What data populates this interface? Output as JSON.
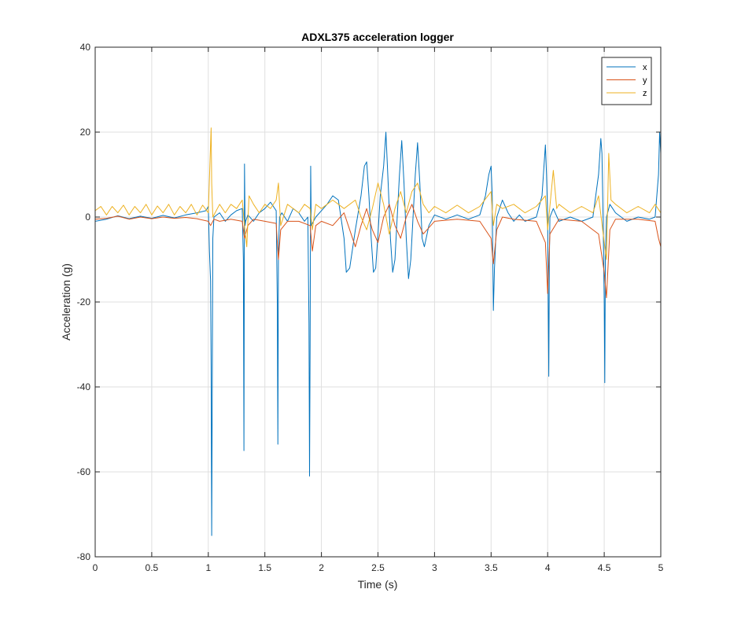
{
  "chart_data": {
    "type": "line",
    "title": "ADXL375 acceleration logger",
    "xlabel": "Time (s)",
    "ylabel": "Acceleration (g)",
    "xlim": [
      0,
      5
    ],
    "ylim": [
      -80,
      40
    ],
    "xticks": [
      "0",
      "0.5",
      "1",
      "1.5",
      "2",
      "2.5",
      "3",
      "3.5",
      "4",
      "4.5",
      "5"
    ],
    "yticks": [
      "40",
      "20",
      "0",
      "-20",
      "-40",
      "-60",
      "-80"
    ],
    "grid": true,
    "legend_position": "top-right",
    "series": [
      {
        "name": "x",
        "color": "#0072BD",
        "points": [
          [
            0,
            -1
          ],
          [
            0.1,
            -0.5
          ],
          [
            0.2,
            0.3
          ],
          [
            0.3,
            -0.4
          ],
          [
            0.4,
            0.2
          ],
          [
            0.5,
            -0.3
          ],
          [
            0.6,
            0.4
          ],
          [
            0.7,
            -0.2
          ],
          [
            0.8,
            0.5
          ],
          [
            0.9,
            1.0
          ],
          [
            0.98,
            1.5
          ],
          [
            1.0,
            2.5
          ],
          [
            1.01,
            -8
          ],
          [
            1.02,
            -15
          ],
          [
            1.025,
            -35
          ],
          [
            1.03,
            -75
          ],
          [
            1.035,
            -40
          ],
          [
            1.04,
            -5
          ],
          [
            1.05,
            0
          ],
          [
            1.1,
            1
          ],
          [
            1.15,
            -1
          ],
          [
            1.2,
            0.5
          ],
          [
            1.25,
            1.5
          ],
          [
            1.3,
            2
          ],
          [
            1.31,
            -10
          ],
          [
            1.315,
            -55
          ],
          [
            1.32,
            12.5
          ],
          [
            1.325,
            -2
          ],
          [
            1.33,
            -1
          ],
          [
            1.35,
            0.5
          ],
          [
            1.4,
            -1
          ],
          [
            1.45,
            1
          ],
          [
            1.5,
            2
          ],
          [
            1.55,
            3.5
          ],
          [
            1.6,
            1.5
          ],
          [
            1.61,
            -20
          ],
          [
            1.615,
            -53.5
          ],
          [
            1.62,
            -8
          ],
          [
            1.63,
            0
          ],
          [
            1.65,
            1
          ],
          [
            1.7,
            -1
          ],
          [
            1.75,
            2
          ],
          [
            1.8,
            1
          ],
          [
            1.85,
            -1
          ],
          [
            1.88,
            0
          ],
          [
            1.89,
            -25
          ],
          [
            1.895,
            -61
          ],
          [
            1.9,
            -30
          ],
          [
            1.905,
            12
          ],
          [
            1.91,
            -2
          ],
          [
            1.95,
            0
          ],
          [
            2.0,
            1.5
          ],
          [
            2.05,
            3
          ],
          [
            2.1,
            5
          ],
          [
            2.15,
            4
          ],
          [
            2.2,
            -5
          ],
          [
            2.22,
            -13
          ],
          [
            2.25,
            -12
          ],
          [
            2.3,
            -3
          ],
          [
            2.35,
            5
          ],
          [
            2.38,
            12
          ],
          [
            2.4,
            13
          ],
          [
            2.42,
            5
          ],
          [
            2.44,
            -5
          ],
          [
            2.46,
            -13
          ],
          [
            2.48,
            -12
          ],
          [
            2.5,
            -4
          ],
          [
            2.52,
            5
          ],
          [
            2.55,
            12
          ],
          [
            2.57,
            20
          ],
          [
            2.59,
            8
          ],
          [
            2.61,
            -5
          ],
          [
            2.63,
            -13
          ],
          [
            2.65,
            -10
          ],
          [
            2.67,
            0
          ],
          [
            2.69,
            10
          ],
          [
            2.71,
            18
          ],
          [
            2.73,
            8
          ],
          [
            2.75,
            -5
          ],
          [
            2.77,
            -14.5
          ],
          [
            2.79,
            -10
          ],
          [
            2.81,
            0
          ],
          [
            2.83,
            10
          ],
          [
            2.85,
            17.5
          ],
          [
            2.87,
            8
          ],
          [
            2.89,
            -5
          ],
          [
            2.91,
            -7
          ],
          [
            2.95,
            -2
          ],
          [
            3.0,
            0.5
          ],
          [
            3.1,
            -0.5
          ],
          [
            3.2,
            0.5
          ],
          [
            3.3,
            -0.5
          ],
          [
            3.4,
            0.5
          ],
          [
            3.45,
            5
          ],
          [
            3.48,
            10
          ],
          [
            3.5,
            12
          ],
          [
            3.51,
            5
          ],
          [
            3.515,
            -10
          ],
          [
            3.52,
            -22
          ],
          [
            3.53,
            -12
          ],
          [
            3.55,
            0
          ],
          [
            3.6,
            4
          ],
          [
            3.65,
            1
          ],
          [
            3.7,
            -1
          ],
          [
            3.75,
            0.5
          ],
          [
            3.8,
            -1
          ],
          [
            3.9,
            0
          ],
          [
            3.95,
            5
          ],
          [
            3.98,
            17
          ],
          [
            3.99,
            10
          ],
          [
            4.0,
            0
          ],
          [
            4.005,
            -20
          ],
          [
            4.01,
            -37.5
          ],
          [
            4.015,
            -10
          ],
          [
            4.02,
            0
          ],
          [
            4.05,
            2
          ],
          [
            4.1,
            -1
          ],
          [
            4.2,
            0
          ],
          [
            4.3,
            -1
          ],
          [
            4.4,
            0
          ],
          [
            4.45,
            10
          ],
          [
            4.47,
            18.5
          ],
          [
            4.48,
            15
          ],
          [
            4.49,
            0
          ],
          [
            4.5,
            -20
          ],
          [
            4.505,
            -39
          ],
          [
            4.51,
            -10
          ],
          [
            4.52,
            0
          ],
          [
            4.55,
            3
          ],
          [
            4.6,
            1
          ],
          [
            4.7,
            -1
          ],
          [
            4.8,
            0
          ],
          [
            4.9,
            -0.5
          ],
          [
            4.95,
            0
          ],
          [
            4.98,
            10
          ],
          [
            4.99,
            20
          ],
          [
            5.0,
            15
          ]
        ]
      },
      {
        "name": "y",
        "color": "#D95319",
        "points": [
          [
            0,
            -0.5
          ],
          [
            0.1,
            -0.3
          ],
          [
            0.2,
            0.2
          ],
          [
            0.3,
            -0.5
          ],
          [
            0.4,
            0
          ],
          [
            0.5,
            -0.4
          ],
          [
            0.6,
            0
          ],
          [
            0.7,
            -0.3
          ],
          [
            0.8,
            -0.1
          ],
          [
            0.9,
            -0.4
          ],
          [
            1.0,
            -1
          ],
          [
            1.02,
            -2
          ],
          [
            1.05,
            -0.5
          ],
          [
            1.1,
            -1
          ],
          [
            1.2,
            -0.5
          ],
          [
            1.3,
            -1
          ],
          [
            1.32,
            -5
          ],
          [
            1.35,
            -2
          ],
          [
            1.4,
            -0.5
          ],
          [
            1.5,
            -1
          ],
          [
            1.6,
            -1.5
          ],
          [
            1.62,
            -10
          ],
          [
            1.64,
            -3
          ],
          [
            1.7,
            -1
          ],
          [
            1.8,
            -1
          ],
          [
            1.9,
            -2
          ],
          [
            1.92,
            -8
          ],
          [
            1.95,
            -2
          ],
          [
            2.0,
            -1
          ],
          [
            2.1,
            -2
          ],
          [
            2.2,
            1
          ],
          [
            2.25,
            -3
          ],
          [
            2.3,
            -7
          ],
          [
            2.35,
            -2
          ],
          [
            2.4,
            2
          ],
          [
            2.45,
            -3
          ],
          [
            2.5,
            -6
          ],
          [
            2.55,
            0
          ],
          [
            2.6,
            3
          ],
          [
            2.65,
            -2
          ],
          [
            2.7,
            -5
          ],
          [
            2.75,
            0
          ],
          [
            2.8,
            3
          ],
          [
            2.85,
            -1
          ],
          [
            2.9,
            -4
          ],
          [
            3.0,
            -1
          ],
          [
            3.2,
            -0.5
          ],
          [
            3.4,
            -1
          ],
          [
            3.5,
            -5
          ],
          [
            3.52,
            -11
          ],
          [
            3.55,
            -3
          ],
          [
            3.6,
            0
          ],
          [
            3.7,
            -0.5
          ],
          [
            3.9,
            -1
          ],
          [
            3.98,
            -6
          ],
          [
            4.0,
            -18
          ],
          [
            4.02,
            -4
          ],
          [
            4.1,
            -0.5
          ],
          [
            4.3,
            -1
          ],
          [
            4.45,
            -4
          ],
          [
            4.5,
            -13
          ],
          [
            4.52,
            -19
          ],
          [
            4.55,
            -3
          ],
          [
            4.6,
            -0.5
          ],
          [
            4.8,
            -0.5
          ],
          [
            4.95,
            -1
          ],
          [
            4.98,
            -5
          ],
          [
            5.0,
            -7
          ]
        ]
      },
      {
        "name": "z",
        "color": "#EDB120",
        "points": [
          [
            0,
            1.5
          ],
          [
            0.05,
            2.5
          ],
          [
            0.1,
            0.5
          ],
          [
            0.15,
            2.5
          ],
          [
            0.2,
            1
          ],
          [
            0.25,
            2.8
          ],
          [
            0.3,
            0.5
          ],
          [
            0.35,
            2.5
          ],
          [
            0.4,
            1
          ],
          [
            0.45,
            3
          ],
          [
            0.5,
            0.5
          ],
          [
            0.55,
            2.6
          ],
          [
            0.6,
            1
          ],
          [
            0.65,
            3
          ],
          [
            0.7,
            0.5
          ],
          [
            0.75,
            2.5
          ],
          [
            0.8,
            1
          ],
          [
            0.85,
            3
          ],
          [
            0.9,
            0.5
          ],
          [
            0.95,
            2.8
          ],
          [
            1.0,
            1
          ],
          [
            1.025,
            21
          ],
          [
            1.03,
            8
          ],
          [
            1.04,
            0
          ],
          [
            1.1,
            3
          ],
          [
            1.15,
            1
          ],
          [
            1.2,
            3
          ],
          [
            1.25,
            2
          ],
          [
            1.3,
            4
          ],
          [
            1.32,
            -2
          ],
          [
            1.34,
            -7
          ],
          [
            1.36,
            5
          ],
          [
            1.4,
            3
          ],
          [
            1.45,
            1
          ],
          [
            1.5,
            3
          ],
          [
            1.55,
            2
          ],
          [
            1.6,
            4
          ],
          [
            1.62,
            8
          ],
          [
            1.64,
            -2
          ],
          [
            1.7,
            3
          ],
          [
            1.8,
            1
          ],
          [
            1.85,
            3
          ],
          [
            1.9,
            2
          ],
          [
            1.92,
            -3
          ],
          [
            1.95,
            3
          ],
          [
            2.0,
            2
          ],
          [
            2.1,
            4
          ],
          [
            2.2,
            2
          ],
          [
            2.3,
            4
          ],
          [
            2.35,
            0
          ],
          [
            2.4,
            -3
          ],
          [
            2.45,
            2
          ],
          [
            2.5,
            8
          ],
          [
            2.55,
            3
          ],
          [
            2.6,
            -4
          ],
          [
            2.65,
            2
          ],
          [
            2.7,
            6
          ],
          [
            2.75,
            1
          ],
          [
            2.8,
            6
          ],
          [
            2.85,
            8
          ],
          [
            2.9,
            3
          ],
          [
            2.95,
            1
          ],
          [
            3.0,
            2.5
          ],
          [
            3.1,
            1
          ],
          [
            3.2,
            2.8
          ],
          [
            3.3,
            1
          ],
          [
            3.4,
            2.5
          ],
          [
            3.5,
            6
          ],
          [
            3.52,
            -2
          ],
          [
            3.55,
            3
          ],
          [
            3.6,
            2
          ],
          [
            3.7,
            3
          ],
          [
            3.8,
            1
          ],
          [
            3.9,
            2.5
          ],
          [
            3.98,
            5
          ],
          [
            4.0,
            -3
          ],
          [
            4.05,
            11
          ],
          [
            4.08,
            2
          ],
          [
            4.1,
            3
          ],
          [
            4.2,
            1
          ],
          [
            4.3,
            2.5
          ],
          [
            4.4,
            1
          ],
          [
            4.45,
            5
          ],
          [
            4.5,
            -6
          ],
          [
            4.52,
            -10
          ],
          [
            4.54,
            15
          ],
          [
            4.56,
            4
          ],
          [
            4.6,
            3
          ],
          [
            4.7,
            1
          ],
          [
            4.8,
            2.5
          ],
          [
            4.9,
            1
          ],
          [
            4.95,
            3
          ],
          [
            5.0,
            1
          ]
        ]
      }
    ]
  }
}
